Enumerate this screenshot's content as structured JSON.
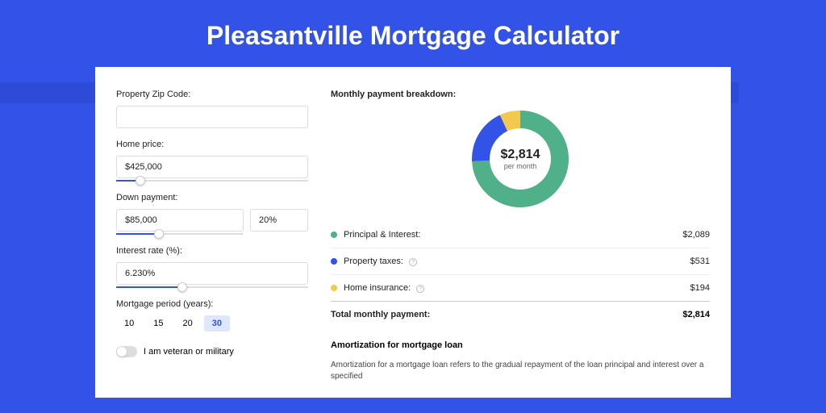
{
  "title": "Pleasantville Mortgage Calculator",
  "colors": {
    "bg": "#3353e8",
    "principal": "#4fb08a",
    "taxes": "#3353e8",
    "insurance": "#f2c94c"
  },
  "form": {
    "zip": {
      "label": "Property Zip Code:",
      "value": ""
    },
    "price": {
      "label": "Home price:",
      "value": "$425,000",
      "slider_pct": 10
    },
    "down": {
      "label": "Down payment:",
      "value": "$85,000",
      "pct": "20%",
      "slider_pct": 20
    },
    "rate": {
      "label": "Interest rate (%):",
      "value": "6.230%",
      "slider_pct": 32
    },
    "period": {
      "label": "Mortgage period (years):",
      "options": [
        "10",
        "15",
        "20",
        "30"
      ],
      "selected": "30"
    },
    "veteran": {
      "label": "I am veteran or military",
      "checked": false
    }
  },
  "breakdown": {
    "title": "Monthly payment breakdown:",
    "center_amount": "$2,814",
    "center_sub": "per month",
    "donut": {
      "size": 120,
      "inner_r": 38,
      "outer_r": 60,
      "slices": [
        {
          "color": "#4fb08a",
          "pct": 74.2
        },
        {
          "color": "#3353e8",
          "pct": 18.9
        },
        {
          "color": "#f2c94c",
          "pct": 6.9
        }
      ]
    },
    "items": [
      {
        "label": "Principal & Interest:",
        "value": "$2,089",
        "color": "#4fb08a",
        "help": false
      },
      {
        "label": "Property taxes:",
        "value": "$531",
        "color": "#3353e8",
        "help": true
      },
      {
        "label": "Home insurance:",
        "value": "$194",
        "color": "#f2c94c",
        "help": true
      }
    ],
    "total": {
      "label": "Total monthly payment:",
      "value": "$2,814"
    }
  },
  "amort": {
    "title": "Amortization for mortgage loan",
    "text": "Amortization for a mortgage loan refers to the gradual repayment of the loan principal and interest over a specified"
  }
}
